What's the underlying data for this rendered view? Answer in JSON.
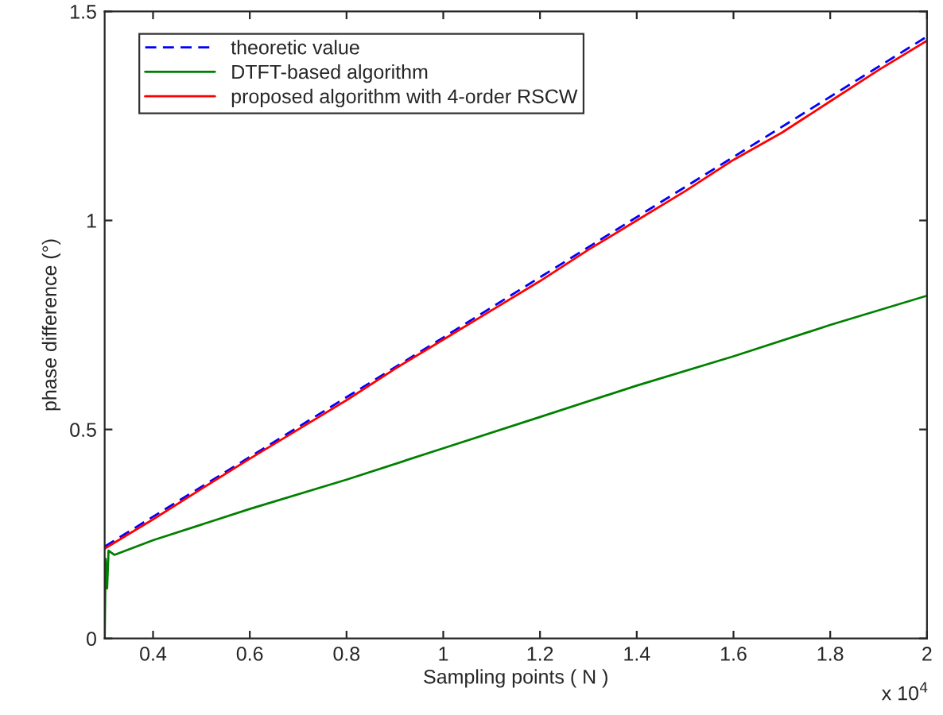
{
  "chart_data": {
    "type": "line",
    "xlabel": "Sampling points ( N )",
    "ylabel": "phase difference (°)",
    "xlim": [
      0.3,
      2
    ],
    "xticks": [
      {
        "value": 0.4,
        "label": "0.4"
      },
      {
        "value": 0.6,
        "label": "0.6"
      },
      {
        "value": 0.8,
        "label": "0.8"
      },
      {
        "value": 1,
        "label": "1"
      },
      {
        "value": 1.2,
        "label": "1.2"
      },
      {
        "value": 1.4,
        "label": "1.4"
      },
      {
        "value": 1.6,
        "label": "1.6"
      },
      {
        "value": 1.8,
        "label": "1.8"
      },
      {
        "value": 2,
        "label": "2"
      }
    ],
    "ylim": [
      0,
      1.5
    ],
    "yticks": [
      0,
      0.5,
      1,
      1.5
    ],
    "grid": false,
    "legend": "top left",
    "annotations": [
      "x 10$^{4}$"
    ],
    "series": [
      {
        "name": "theoretic value",
        "color": "#0000ff",
        "line_style": "dashed",
        "x": [
          0.3,
          1.0,
          2.0
        ],
        "values": [
          0.22,
          0.72,
          1.44
        ]
      },
      {
        "name": "DTFT-based algorithm",
        "color": "#008000",
        "line_style": "solid",
        "x": [
          0.3,
          0.302,
          0.305,
          0.308,
          0.32,
          0.4,
          0.6,
          0.8,
          1.0,
          1.2,
          1.4,
          1.6,
          1.8,
          2.0
        ],
        "values": [
          0.0,
          0.19,
          0.12,
          0.21,
          0.2,
          0.235,
          0.31,
          0.38,
          0.455,
          0.53,
          0.605,
          0.675,
          0.75,
          0.82
        ]
      },
      {
        "name": "proposed algorithm with 4-order RSCW",
        "color": "#ff0000",
        "line_style": "solid",
        "x": [
          0.3,
          0.4,
          0.5,
          0.6,
          0.7,
          0.8,
          0.9,
          1.0,
          1.1,
          1.2,
          1.3,
          1.4,
          1.5,
          1.6,
          1.7,
          1.8,
          1.9,
          2.0
        ],
        "values": [
          0.215,
          0.285,
          0.358,
          0.43,
          0.5,
          0.57,
          0.645,
          0.715,
          0.785,
          0.855,
          0.93,
          1.0,
          1.07,
          1.145,
          1.21,
          1.285,
          1.36,
          1.43
        ]
      }
    ]
  }
}
